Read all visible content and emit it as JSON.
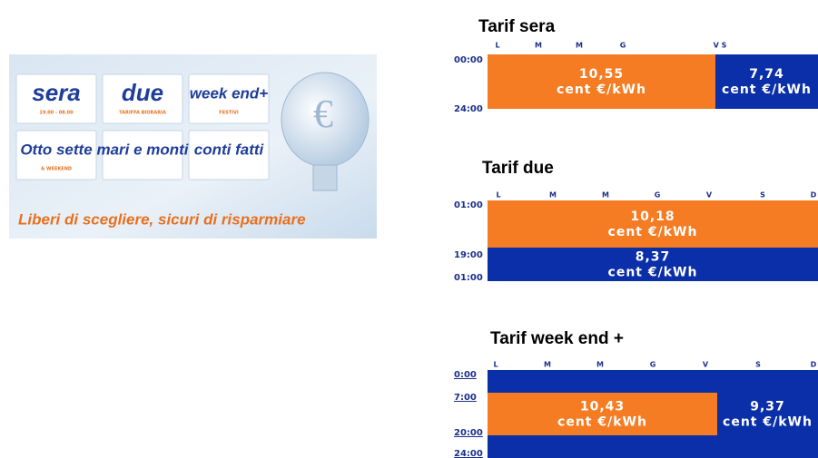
{
  "banner": {
    "tiles": [
      {
        "label": "sera",
        "sub": "19.00 - 08.00"
      },
      {
        "label": "due",
        "sub": "TARIFFA BIORARIA"
      },
      {
        "label": "week end+",
        "sub": "FESTIVI"
      },
      {
        "label": "Otto sette",
        "sub": "& WEEKEND"
      },
      {
        "label": "mari e monti"
      },
      {
        "label": "conti fatti"
      }
    ],
    "icon": "€",
    "slogan": "Liberi di scegliere, sicuri di risparmiare"
  },
  "panels": [
    {
      "title": "Tarif sera",
      "days": [
        "L",
        "M",
        "M",
        "G",
        "V S"
      ],
      "times": [
        "00:00",
        "24:00"
      ],
      "blocks": [
        {
          "price": "10,55",
          "unit": "cent €/kWh"
        },
        {
          "price": "7,74",
          "unit": "cent €/kWh"
        }
      ]
    },
    {
      "title": "Tarif due",
      "days": [
        "L",
        "M",
        "M",
        "G",
        "V",
        "S",
        "D"
      ],
      "times": [
        "01:00",
        "19:00",
        "01:00"
      ],
      "blocks": [
        {
          "price": "10,18",
          "unit": "cent €/kWh"
        },
        {
          "price": "8,37",
          "unit": "cent €/kWh"
        }
      ]
    },
    {
      "title": "Tarif week end +",
      "days": [
        "L",
        "M",
        "M",
        "G",
        "V",
        "S",
        "D"
      ],
      "times": [
        "0:00",
        "7:00",
        "20:00",
        "24:00"
      ],
      "blocks": [
        {
          "price": "10,43",
          "unit": "cent €/kWh"
        },
        {
          "price": "9,37",
          "unit": "cent €/kWh"
        }
      ]
    }
  ]
}
